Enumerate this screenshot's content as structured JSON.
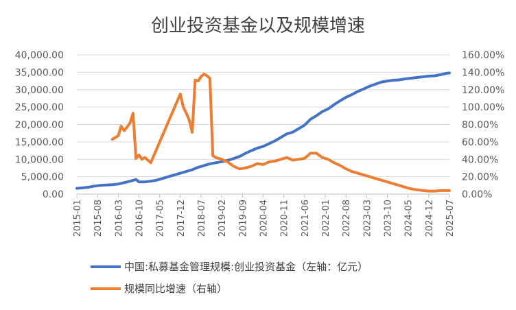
{
  "chart_data": {
    "type": "line",
    "title": "创业投资基金以及规模增速",
    "left_axis": {
      "ylim": [
        0,
        40000
      ],
      "tick_values": [
        0,
        5000,
        10000,
        15000,
        20000,
        25000,
        30000,
        35000,
        40000
      ],
      "tick_labels": [
        "0.00",
        "5,000.00",
        "10,000.00",
        "15,000.00",
        "20,000.00",
        "25,000.00",
        "30,000.00",
        "35,000.00",
        "40,000.00"
      ]
    },
    "right_axis": {
      "ylim": [
        0,
        1.6
      ],
      "tick_values": [
        0,
        0.2,
        0.4,
        0.6,
        0.8,
        1.0,
        1.2,
        1.4,
        1.6
      ],
      "tick_labels": [
        "0.00%",
        "20.00%",
        "40.00%",
        "60.00%",
        "80.00%",
        "100.00%",
        "120.00%",
        "140.00%",
        "160.00%"
      ]
    },
    "x_axis": {
      "start": "2015-01",
      "end": "2025-07",
      "tick_labels": [
        "2015-01",
        "2015-08",
        "2016-03",
        "2016-10",
        "2017-05",
        "2017-12",
        "2018-07",
        "2019-02",
        "2019-09",
        "2020-04",
        "2020-11",
        "2021-06",
        "2022-01",
        "2022-08",
        "2023-03",
        "2023-10",
        "2024-05",
        "2024-12",
        "2025-07"
      ]
    },
    "series": [
      {
        "name": "中国:私募基金管理规模:创业投资基金（左轴：亿元）",
        "axis": "left",
        "color": "#4472C4",
        "points": [
          [
            "2015-01",
            1650
          ],
          [
            "2015-03",
            1800
          ],
          [
            "2015-05",
            2000
          ],
          [
            "2015-07",
            2300
          ],
          [
            "2015-09",
            2500
          ],
          [
            "2015-11",
            2600
          ],
          [
            "2016-01",
            2700
          ],
          [
            "2016-03",
            2900
          ],
          [
            "2016-05",
            3300
          ],
          [
            "2016-07",
            3700
          ],
          [
            "2016-09",
            4200
          ],
          [
            "2016-10",
            3500
          ],
          [
            "2016-12",
            3500
          ],
          [
            "2017-02",
            3700
          ],
          [
            "2017-04",
            4000
          ],
          [
            "2017-06",
            4500
          ],
          [
            "2017-08",
            5000
          ],
          [
            "2017-10",
            5500
          ],
          [
            "2017-12",
            6000
          ],
          [
            "2018-02",
            6500
          ],
          [
            "2018-04",
            7000
          ],
          [
            "2018-06",
            7700
          ],
          [
            "2018-08",
            8200
          ],
          [
            "2018-10",
            8700
          ],
          [
            "2018-12",
            9000
          ],
          [
            "2019-02",
            9300
          ],
          [
            "2019-04",
            9700
          ],
          [
            "2019-06",
            10200
          ],
          [
            "2019-08",
            10800
          ],
          [
            "2019-10",
            11700
          ],
          [
            "2019-12",
            12500
          ],
          [
            "2020-02",
            13200
          ],
          [
            "2020-04",
            13700
          ],
          [
            "2020-06",
            14500
          ],
          [
            "2020-08",
            15300
          ],
          [
            "2020-10",
            16300
          ],
          [
            "2020-12",
            17300
          ],
          [
            "2021-02",
            17800
          ],
          [
            "2021-04",
            18800
          ],
          [
            "2021-06",
            19800
          ],
          [
            "2021-08",
            21500
          ],
          [
            "2021-10",
            22500
          ],
          [
            "2021-12",
            23700
          ],
          [
            "2022-02",
            24500
          ],
          [
            "2022-04",
            25700
          ],
          [
            "2022-06",
            26800
          ],
          [
            "2022-08",
            27800
          ],
          [
            "2022-10",
            28600
          ],
          [
            "2022-12",
            29500
          ],
          [
            "2023-02",
            30200
          ],
          [
            "2023-04",
            31000
          ],
          [
            "2023-06",
            31600
          ],
          [
            "2023-08",
            32200
          ],
          [
            "2023-10",
            32500
          ],
          [
            "2023-12",
            32700
          ],
          [
            "2024-02",
            32800
          ],
          [
            "2024-04",
            33100
          ],
          [
            "2024-06",
            33300
          ],
          [
            "2024-08",
            33500
          ],
          [
            "2024-10",
            33700
          ],
          [
            "2024-12",
            33900
          ],
          [
            "2025-02",
            34000
          ],
          [
            "2025-04",
            34300
          ],
          [
            "2025-06",
            34700
          ],
          [
            "2025-07",
            34800
          ]
        ]
      },
      {
        "name": "规模同比增速（右轴）",
        "axis": "right",
        "color": "#ED7D31",
        "points": [
          [
            "2016-01",
            0.63
          ],
          [
            "2016-02",
            0.65
          ],
          [
            "2016-03",
            0.67
          ],
          [
            "2016-04",
            0.78
          ],
          [
            "2016-05",
            0.73
          ],
          [
            "2016-06",
            0.77
          ],
          [
            "2016-07",
            0.82
          ],
          [
            "2016-08",
            0.93
          ],
          [
            "2016-09",
            0.41
          ],
          [
            "2016-10",
            0.45
          ],
          [
            "2016-11",
            0.4
          ],
          [
            "2016-12",
            0.42
          ],
          [
            "2017-01",
            0.39
          ],
          [
            "2017-02",
            0.36
          ],
          [
            "2017-12",
            1.15
          ],
          [
            "2018-01",
            1.0
          ],
          [
            "2018-02",
            0.93
          ],
          [
            "2018-03",
            0.85
          ],
          [
            "2018-04",
            0.71
          ],
          [
            "2018-05",
            1.31
          ],
          [
            "2018-06",
            1.3
          ],
          [
            "2018-07",
            1.35
          ],
          [
            "2018-08",
            1.38
          ],
          [
            "2018-09",
            1.36
          ],
          [
            "2018-10",
            1.33
          ],
          [
            "2018-11",
            0.44
          ],
          [
            "2018-12",
            0.42
          ],
          [
            "2019-02",
            0.4
          ],
          [
            "2019-04",
            0.37
          ],
          [
            "2019-06",
            0.32
          ],
          [
            "2019-08",
            0.29
          ],
          [
            "2019-10",
            0.3
          ],
          [
            "2019-12",
            0.32
          ],
          [
            "2020-02",
            0.35
          ],
          [
            "2020-04",
            0.34
          ],
          [
            "2020-06",
            0.37
          ],
          [
            "2020-08",
            0.38
          ],
          [
            "2020-10",
            0.4
          ],
          [
            "2020-12",
            0.42
          ],
          [
            "2021-02",
            0.39
          ],
          [
            "2021-04",
            0.4
          ],
          [
            "2021-06",
            0.41
          ],
          [
            "2021-08",
            0.47
          ],
          [
            "2021-10",
            0.47
          ],
          [
            "2021-12",
            0.42
          ],
          [
            "2022-02",
            0.4
          ],
          [
            "2022-04",
            0.36
          ],
          [
            "2022-06",
            0.33
          ],
          [
            "2022-08",
            0.29
          ],
          [
            "2022-10",
            0.26
          ],
          [
            "2022-12",
            0.24
          ],
          [
            "2023-02",
            0.22
          ],
          [
            "2023-04",
            0.2
          ],
          [
            "2023-06",
            0.18
          ],
          [
            "2023-08",
            0.16
          ],
          [
            "2023-10",
            0.14
          ],
          [
            "2023-12",
            0.12
          ],
          [
            "2024-02",
            0.1
          ],
          [
            "2024-04",
            0.08
          ],
          [
            "2024-06",
            0.06
          ],
          [
            "2024-08",
            0.05
          ],
          [
            "2024-10",
            0.04
          ],
          [
            "2024-12",
            0.035
          ],
          [
            "2025-02",
            0.035
          ],
          [
            "2025-04",
            0.04
          ],
          [
            "2025-06",
            0.04
          ],
          [
            "2025-07",
            0.04
          ]
        ]
      }
    ],
    "legend": {
      "position": "bottom",
      "items": [
        "中国:私募基金管理规模:创业投资基金（左轴：亿元）",
        "规模同比增速（右轴）"
      ]
    }
  }
}
